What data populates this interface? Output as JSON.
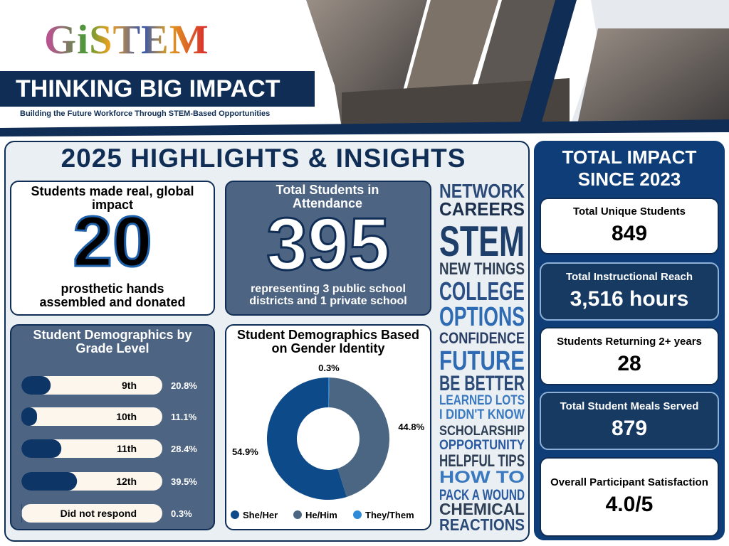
{
  "header": {
    "logo": "GiSTEM",
    "title": "THINKING BIG IMPACT",
    "subtitle": "Building the Future Workforce Through STEM-Based Opportunities"
  },
  "highlights": {
    "title": "2025 HIGHLIGHTS & INSIGHTS",
    "impact_card": {
      "heading": "Students made real, global impact",
      "number": "20",
      "caption": "prosthetic hands assembled and donated"
    },
    "attendance_card": {
      "heading": "Total Students in Attendance",
      "number": "395",
      "caption": "representing 3 public school districts and 1 private school"
    }
  },
  "chart_data": [
    {
      "type": "bar",
      "orientation": "horizontal",
      "title": "Student Demographics by Grade Level",
      "categories": [
        "9th",
        "10th",
        "11th",
        "12th",
        "Did not respond"
      ],
      "values": [
        20.8,
        11.1,
        28.4,
        39.5,
        0.3
      ],
      "value_labels": [
        "20.8%",
        "11.1%",
        "28.4%",
        "39.5%",
        "0.3%"
      ],
      "color": "#0d3566",
      "xlim": [
        0,
        100
      ]
    },
    {
      "type": "donut",
      "title": "Student Demographics Based on Gender Identity",
      "categories": [
        "She/Her",
        "He/Him",
        "They/Them"
      ],
      "values": [
        54.9,
        44.8,
        0.3
      ],
      "value_labels": [
        "54.9%",
        "44.8%",
        "0.3%"
      ],
      "colors": [
        "#0d4a8a",
        "#4b6683",
        "#2f8bd8"
      ],
      "legend": "bottom"
    }
  ],
  "word_cloud": [
    "NETWORK",
    "CAREERS",
    "STEM",
    "NEW THINGS",
    "COLLEGE",
    "OPTIONS",
    "CONFIDENCE",
    "FUTURE",
    "BE BETTER",
    "LEARNED LOTS",
    "I DIDN'T KNOW",
    "SCHOLARSHIP",
    "OPPORTUNITY",
    "HELPFUL TIPS",
    "HOW TO",
    "PACK A WOUND",
    "CHEMICAL",
    "REACTIONS"
  ],
  "total_impact": {
    "title": "TOTAL IMPACT SINCE 2023",
    "stats": [
      {
        "label": "Total Unique Students",
        "value": "849"
      },
      {
        "label": "Total Instructional Reach",
        "value": "3,516 hours"
      },
      {
        "label": "Students Returning 2+ years",
        "value": "28"
      },
      {
        "label": "Total Student Meals Served",
        "value": "879"
      },
      {
        "label": "Overall Participant Satisfaction",
        "value": "4.0/5"
      }
    ]
  }
}
